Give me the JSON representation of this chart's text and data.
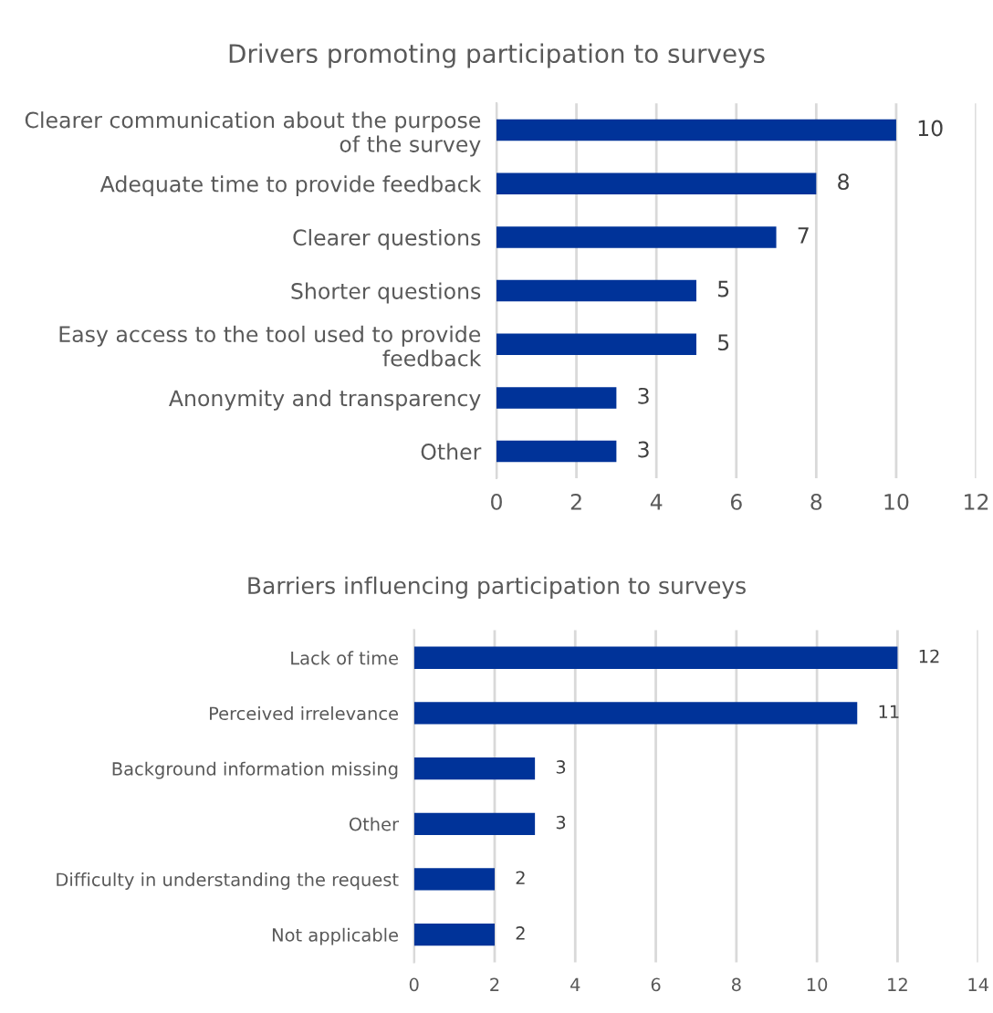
{
  "chart_data": [
    {
      "type": "bar",
      "orientation": "horizontal",
      "title": "Drivers promoting participation to surveys",
      "categories": [
        "Clearer communication about the purpose of the survey",
        "Adequate time to provide feedback",
        "Clearer questions",
        "Shorter questions",
        "Easy access to the tool used to provide feedback",
        "Anonymity and transparency",
        "Other"
      ],
      "values": [
        10,
        8,
        7,
        5,
        5,
        3,
        3
      ],
      "color": "#003399",
      "xlim": [
        0,
        12
      ],
      "xticks": [
        0,
        2,
        4,
        6,
        8,
        10,
        12
      ],
      "grid": "x",
      "data_labels": true
    },
    {
      "type": "bar",
      "orientation": "horizontal",
      "title": "Barriers influencing participation to surveys",
      "categories": [
        "Lack of time",
        "Perceived irrelevance",
        "Background information missing",
        "Other",
        "Difficulty in understanding the request",
        "Not applicable"
      ],
      "values": [
        12,
        11,
        3,
        3,
        2,
        2
      ],
      "color": "#003399",
      "xlim": [
        0,
        14
      ],
      "xticks": [
        0,
        2,
        4,
        6,
        8,
        10,
        12,
        14
      ],
      "grid": "x",
      "data_labels": true
    }
  ]
}
